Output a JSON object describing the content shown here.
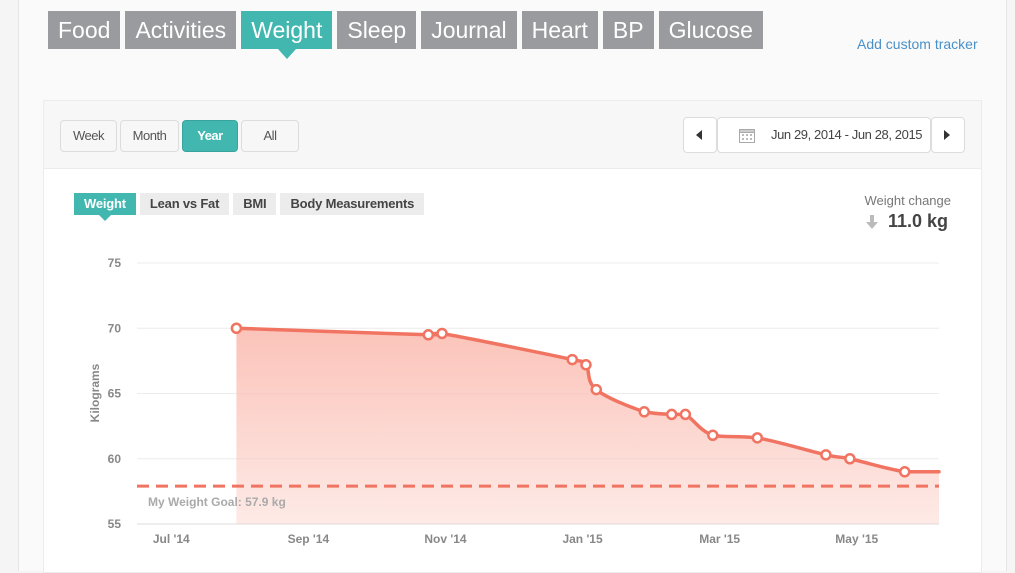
{
  "tabs": [
    {
      "label": "Food",
      "active": false
    },
    {
      "label": "Activities",
      "active": false
    },
    {
      "label": "Weight",
      "active": true
    },
    {
      "label": "Sleep",
      "active": false
    },
    {
      "label": "Journal",
      "active": false
    },
    {
      "label": "Heart",
      "active": false
    },
    {
      "label": "BP",
      "active": false
    },
    {
      "label": "Glucose",
      "active": false
    }
  ],
  "add_custom_tracker": "Add custom tracker",
  "range": {
    "buttons": [
      "Week",
      "Month",
      "Year",
      "All"
    ],
    "active": "Year",
    "date_range": "Jun 29, 2014 - Jun 28, 2015"
  },
  "subtabs": [
    "Weight",
    "Lean vs Fat",
    "BMI",
    "Body Measurements"
  ],
  "weight_change": {
    "label": "Weight change",
    "value": "11.0 kg",
    "direction": "down"
  },
  "colors": {
    "accent": "#42b7b0",
    "line": "#f07461",
    "fill": "#fbc3b9",
    "tab_gray": "#999b9e"
  },
  "icons": {
    "calendar": "calendar-icon",
    "prev": "chevron-left-icon",
    "next": "chevron-right-icon",
    "change": "arrow-down-icon"
  },
  "chart_data": {
    "type": "area",
    "ylabel": "Kilograms",
    "ylim": [
      55,
      75
    ],
    "yticks": [
      55,
      60,
      65,
      70,
      75
    ],
    "xticks": [
      {
        "label": "Jul '14",
        "month": 0
      },
      {
        "label": "Sep '14",
        "month": 2
      },
      {
        "label": "Nov '14",
        "month": 4
      },
      {
        "label": "Jan '15",
        "month": 6
      },
      {
        "label": "Mar '15",
        "month": 8
      },
      {
        "label": "May '15",
        "month": 10
      }
    ],
    "xlim": [
      -0.5,
      11.2
    ],
    "goal": {
      "label": "My Weight Goal: 57.9 kg",
      "value": 57.9
    },
    "grid": true,
    "series": [
      {
        "points": [
          {
            "x": 0.95,
            "y": 70.0
          },
          {
            "x": 3.75,
            "y": 69.5
          },
          {
            "x": 3.95,
            "y": 69.6
          },
          {
            "x": 5.85,
            "y": 67.6
          },
          {
            "x": 6.05,
            "y": 67.2
          },
          {
            "x": 6.2,
            "y": 65.3
          },
          {
            "x": 6.9,
            "y": 63.6
          },
          {
            "x": 7.3,
            "y": 63.4
          },
          {
            "x": 7.5,
            "y": 63.4
          },
          {
            "x": 7.9,
            "y": 61.8
          },
          {
            "x": 8.55,
            "y": 61.6
          },
          {
            "x": 9.55,
            "y": 60.3
          },
          {
            "x": 9.9,
            "y": 60.0
          },
          {
            "x": 10.7,
            "y": 59.0
          },
          {
            "x": 11.2,
            "y": 59.0,
            "marker": false
          }
        ]
      }
    ]
  }
}
